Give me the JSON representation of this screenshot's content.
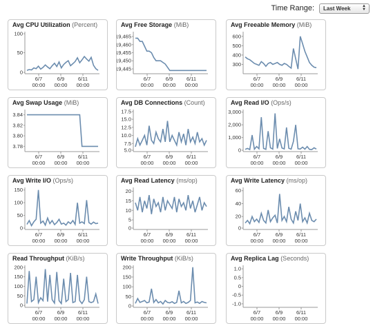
{
  "header": {
    "time_range_label": "Time Range:",
    "time_range_value": "Last Week"
  },
  "x_tick_dates": [
    "6/7",
    "6/9",
    "6/11"
  ],
  "x_tick_times": [
    "00:00",
    "00:00",
    "00:00"
  ],
  "colors": {
    "line": "#6b8cae",
    "axis": "#999999",
    "panel_border": "#c9c9c9"
  },
  "chart_data": [
    {
      "type": "line",
      "title": "Avg CPU Utilization",
      "unit": "(Percent)",
      "ylim": [
        0,
        100
      ],
      "yticks": [
        "100",
        "50",
        "0"
      ],
      "series": [
        {
          "values": [
            8,
            10,
            9,
            14,
            12,
            18,
            11,
            15,
            21,
            16,
            12,
            19,
            25,
            17,
            28,
            14,
            22,
            27,
            31,
            19,
            24,
            29,
            38,
            26,
            33,
            41,
            35,
            30,
            39,
            20,
            12,
            8
          ]
        }
      ]
    },
    {
      "type": "line",
      "title": "Avg Free Storage",
      "unit": "(MiB)",
      "ylim": [
        19442,
        19468
      ],
      "yticks": [
        "19,465",
        "19,460",
        "19,455",
        "19,450",
        "19,445"
      ],
      "series": [
        {
          "values": [
            19464,
            19464,
            19462,
            19462,
            19459,
            19456,
            19456,
            19455,
            19452,
            19450,
            19450,
            19450,
            19449,
            19448,
            19446,
            19444,
            19444,
            19444,
            19444,
            19444,
            19444,
            19444,
            19444,
            19444,
            19444,
            19444,
            19444,
            19444,
            19444,
            19444,
            19444,
            19444
          ]
        }
      ]
    },
    {
      "type": "line",
      "title": "Avg Freeable Memory",
      "unit": "(MiB)",
      "ylim": [
        200,
        650
      ],
      "yticks": [
        "600",
        "500",
        "400",
        "300"
      ],
      "series": [
        {
          "values": [
            380,
            360,
            350,
            330,
            310,
            300,
            290,
            330,
            310,
            280,
            310,
            320,
            300,
            310,
            320,
            300,
            290,
            310,
            300,
            280,
            260,
            470,
            360,
            250,
            600,
            520,
            440,
            380,
            320,
            290,
            270,
            265
          ]
        }
      ]
    },
    {
      "type": "line",
      "title": "Avg Swap Usage",
      "unit": "(MiB)",
      "ylim": [
        3.77,
        3.85
      ],
      "yticks": [
        "3.84",
        "3.82",
        "3.80",
        "3.78"
      ],
      "series": [
        {
          "values": [
            3.84,
            3.84,
            3.84,
            3.84,
            3.84,
            3.84,
            3.84,
            3.84,
            3.84,
            3.84,
            3.84,
            3.84,
            3.84,
            3.84,
            3.84,
            3.84,
            3.84,
            3.84,
            3.84,
            3.84,
            3.84,
            3.84,
            3.84,
            3.84,
            3.78,
            3.78,
            3.78,
            3.78,
            3.78,
            3.78,
            3.78,
            3.78
          ]
        }
      ]
    },
    {
      "type": "line",
      "title": "Avg DB Connections",
      "unit": "(Count)",
      "ylim": [
        5,
        18
      ],
      "yticks": [
        "17.5",
        "15.0",
        "12.5",
        "10.0",
        "7.5",
        "5.0"
      ],
      "series": [
        {
          "values": [
            6.5,
            9,
            7,
            8.5,
            10,
            7,
            13,
            8.5,
            7.5,
            11,
            9,
            8,
            12,
            8,
            14.5,
            8,
            10,
            8.5,
            7,
            11,
            8,
            10.5,
            7,
            12,
            8,
            9.5,
            7.5,
            11,
            8,
            9,
            7,
            8.5
          ]
        }
      ]
    },
    {
      "type": "line",
      "title": "Avg Read I/O",
      "unit": "(Ops/s)",
      "ylim": [
        -100,
        3200
      ],
      "yticks": [
        "3,000",
        "2,000",
        "1,000",
        "0"
      ],
      "series": [
        {
          "values": [
            80,
            150,
            60,
            1200,
            90,
            300,
            120,
            2600,
            150,
            80,
            1500,
            200,
            100,
            2900,
            150,
            900,
            180,
            110,
            1800,
            160,
            90,
            700,
            2000,
            120,
            100,
            250,
            90,
            300,
            80,
            60,
            200,
            100
          ]
        }
      ]
    },
    {
      "type": "line",
      "title": "Avg Write I/O",
      "unit": "(Ops/s)",
      "ylim": [
        -5,
        160
      ],
      "yticks": [
        "150",
        "100",
        "50",
        "0"
      ],
      "series": [
        {
          "values": [
            15,
            30,
            10,
            25,
            35,
            150,
            20,
            28,
            12,
            40,
            18,
            30,
            14,
            22,
            35,
            16,
            20,
            12,
            25,
            18,
            30,
            15,
            100,
            20,
            25,
            18,
            110,
            22,
            16,
            24,
            18,
            20
          ]
        }
      ]
    },
    {
      "type": "line",
      "title": "Avg Read Latency",
      "unit": "(ms/op)",
      "ylim": [
        0,
        22
      ],
      "yticks": [
        "20",
        "15",
        "10",
        "5",
        "0"
      ],
      "series": [
        {
          "values": [
            14,
            10,
            17,
            9,
            15,
            11,
            18,
            8,
            16,
            12,
            14,
            9,
            17,
            10,
            15,
            13,
            11,
            17,
            9,
            16,
            12,
            14,
            10,
            18,
            11,
            15,
            9,
            13,
            17,
            10,
            14,
            12
          ]
        }
      ]
    },
    {
      "type": "line",
      "title": "Avg Write Latency",
      "unit": "(ms/op)",
      "ylim": [
        0,
        65
      ],
      "yticks": [
        "60",
        "40",
        "20",
        "0"
      ],
      "series": [
        {
          "values": [
            10,
            14,
            9,
            20,
            12,
            16,
            11,
            25,
            14,
            10,
            30,
            12,
            18,
            22,
            10,
            55,
            14,
            20,
            12,
            35,
            16,
            10,
            28,
            14,
            40,
            12,
            18,
            10,
            25,
            14,
            12,
            16
          ]
        }
      ]
    },
    {
      "type": "line",
      "title": "Read Throughput",
      "unit": "(KiB/s)",
      "ylim": [
        -10,
        210
      ],
      "yticks": [
        "200",
        "150",
        "100",
        "50",
        "0"
      ],
      "series": [
        {
          "values": [
            10,
            180,
            20,
            30,
            150,
            15,
            40,
            25,
            190,
            20,
            160,
            30,
            12,
            175,
            25,
            10,
            140,
            20,
            30,
            170,
            15,
            20,
            160,
            25,
            10,
            30,
            150,
            20,
            15,
            20,
            60,
            10
          ]
        }
      ]
    },
    {
      "type": "line",
      "title": "Write Throughput",
      "unit": "(KiB/s)",
      "ylim": [
        -5,
        210
      ],
      "yticks": [
        "200",
        "150",
        "100",
        "50",
        "0"
      ],
      "series": [
        {
          "values": [
            15,
            40,
            20,
            25,
            30,
            18,
            22,
            90,
            20,
            35,
            18,
            25,
            12,
            30,
            20,
            18,
            24,
            15,
            20,
            80,
            18,
            25,
            15,
            20,
            30,
            200,
            18,
            22,
            15,
            25,
            20,
            18
          ]
        }
      ]
    },
    {
      "type": "line",
      "title": "Avg Replica Lag",
      "unit": "(Seconds)",
      "ylim": [
        -1.2,
        1.2
      ],
      "yticks": [
        "1.0",
        "0.5",
        "0",
        "-0.5",
        "-1.0"
      ],
      "series": [
        {
          "values": []
        }
      ]
    }
  ]
}
